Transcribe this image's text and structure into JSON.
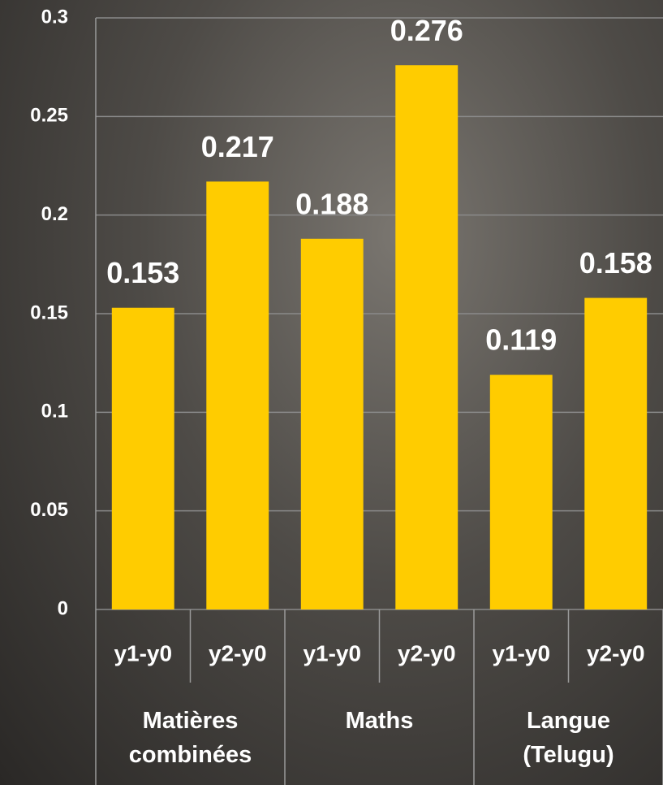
{
  "chart_data": {
    "type": "bar",
    "categories": [
      "y1-y0",
      "y2-y0",
      "y1-y0",
      "y2-y0",
      "y1-y0",
      "y2-y0"
    ],
    "groups": [
      "Matières combinées",
      "Maths",
      "Langue (Telugu)"
    ],
    "values": [
      0.153,
      0.217,
      0.188,
      0.276,
      0.119,
      0.158
    ],
    "color": "#ffcc00",
    "ylim": [
      0,
      0.3
    ],
    "yticks": [
      0,
      0.05,
      0.1,
      0.15,
      0.2,
      0.25,
      0.3
    ],
    "grid": true
  }
}
